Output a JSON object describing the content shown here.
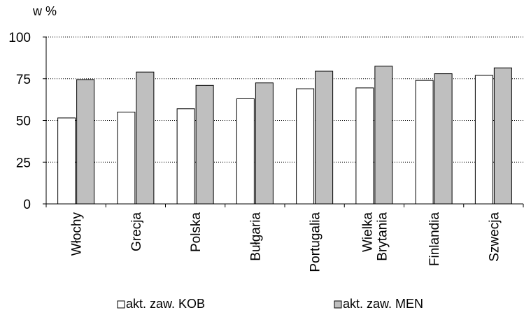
{
  "chart_data": {
    "type": "bar",
    "ylabel": "w %",
    "ylim": [
      0,
      100
    ],
    "yticks": [
      0,
      25,
      50,
      75,
      100
    ],
    "grid": "horizontal dotted",
    "legend_position": "bottom",
    "categories": [
      [
        "Włochy"
      ],
      [
        "Grecja"
      ],
      [
        "Polska"
      ],
      [
        "Bułgaria"
      ],
      [
        "Portugalia"
      ],
      [
        "Wielka",
        "Brytania"
      ],
      [
        "Finlandia"
      ],
      [
        "Szwecja"
      ]
    ],
    "series": [
      {
        "name": "akt. zaw. KOB",
        "color": "#ffffff",
        "values": [
          51.5,
          55,
          57,
          63,
          69,
          69.5,
          74,
          77
        ]
      },
      {
        "name": "akt. zaw. MEN",
        "color": "#bfbfbf",
        "values": [
          74.5,
          79,
          71,
          72.5,
          79.5,
          82.5,
          78,
          81.5
        ]
      }
    ]
  }
}
